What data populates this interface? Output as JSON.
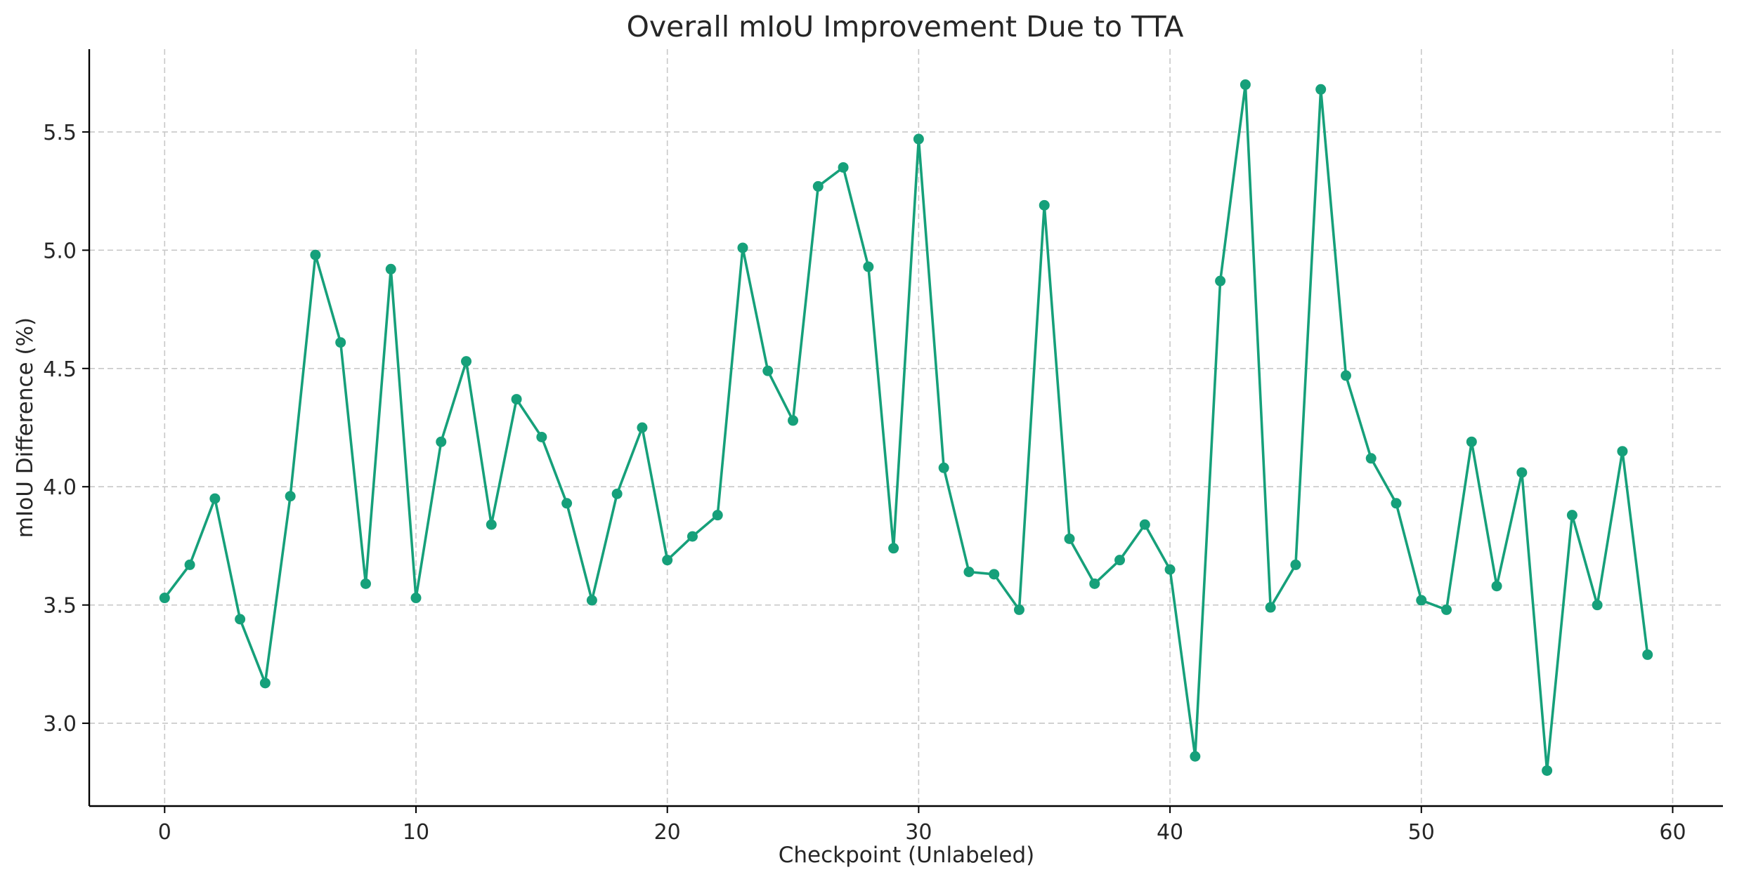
{
  "chart_data": {
    "type": "line",
    "title": "Overall mIoU Improvement Due to TTA",
    "xlabel": "Checkpoint (Unlabeled)",
    "ylabel": "mIoU Difference (%)",
    "xlim": [
      -3,
      62
    ],
    "ylim": [
      2.65,
      5.85
    ],
    "xticks": [
      0,
      10,
      20,
      30,
      40,
      50,
      60
    ],
    "yticks": [
      3.0,
      3.5,
      4.0,
      4.5,
      5.0,
      5.5
    ],
    "grid": true,
    "color": "#16a07a",
    "series": [
      {
        "x": [
          0,
          1,
          2,
          3,
          4,
          5,
          6,
          7,
          8,
          9,
          10,
          11,
          12,
          13,
          14,
          15,
          16,
          17,
          18,
          19,
          20,
          21,
          22,
          23,
          24,
          25,
          26,
          27,
          28,
          29,
          30,
          31,
          32,
          33,
          34,
          35,
          36,
          37,
          38,
          39,
          40,
          41,
          42,
          43,
          44,
          45,
          46,
          47,
          48,
          49,
          50,
          51,
          52,
          53,
          54,
          55,
          56,
          57,
          58,
          59
        ],
        "y": [
          3.53,
          3.67,
          3.95,
          3.44,
          3.17,
          3.96,
          4.98,
          4.61,
          3.59,
          4.92,
          3.53,
          4.19,
          4.53,
          3.84,
          4.37,
          4.21,
          3.93,
          3.52,
          3.97,
          4.25,
          3.69,
          3.79,
          3.88,
          5.01,
          4.49,
          4.28,
          5.27,
          5.35,
          4.93,
          3.74,
          5.47,
          4.08,
          3.64,
          3.63,
          3.48,
          5.19,
          3.78,
          3.59,
          3.69,
          3.84,
          3.65,
          2.86,
          4.87,
          5.7,
          3.49,
          3.67,
          5.68,
          4.47,
          4.12,
          3.93,
          3.52,
          3.48,
          4.19,
          3.58,
          4.06,
          2.8,
          3.88,
          3.5,
          4.15,
          3.29
        ]
      }
    ]
  }
}
